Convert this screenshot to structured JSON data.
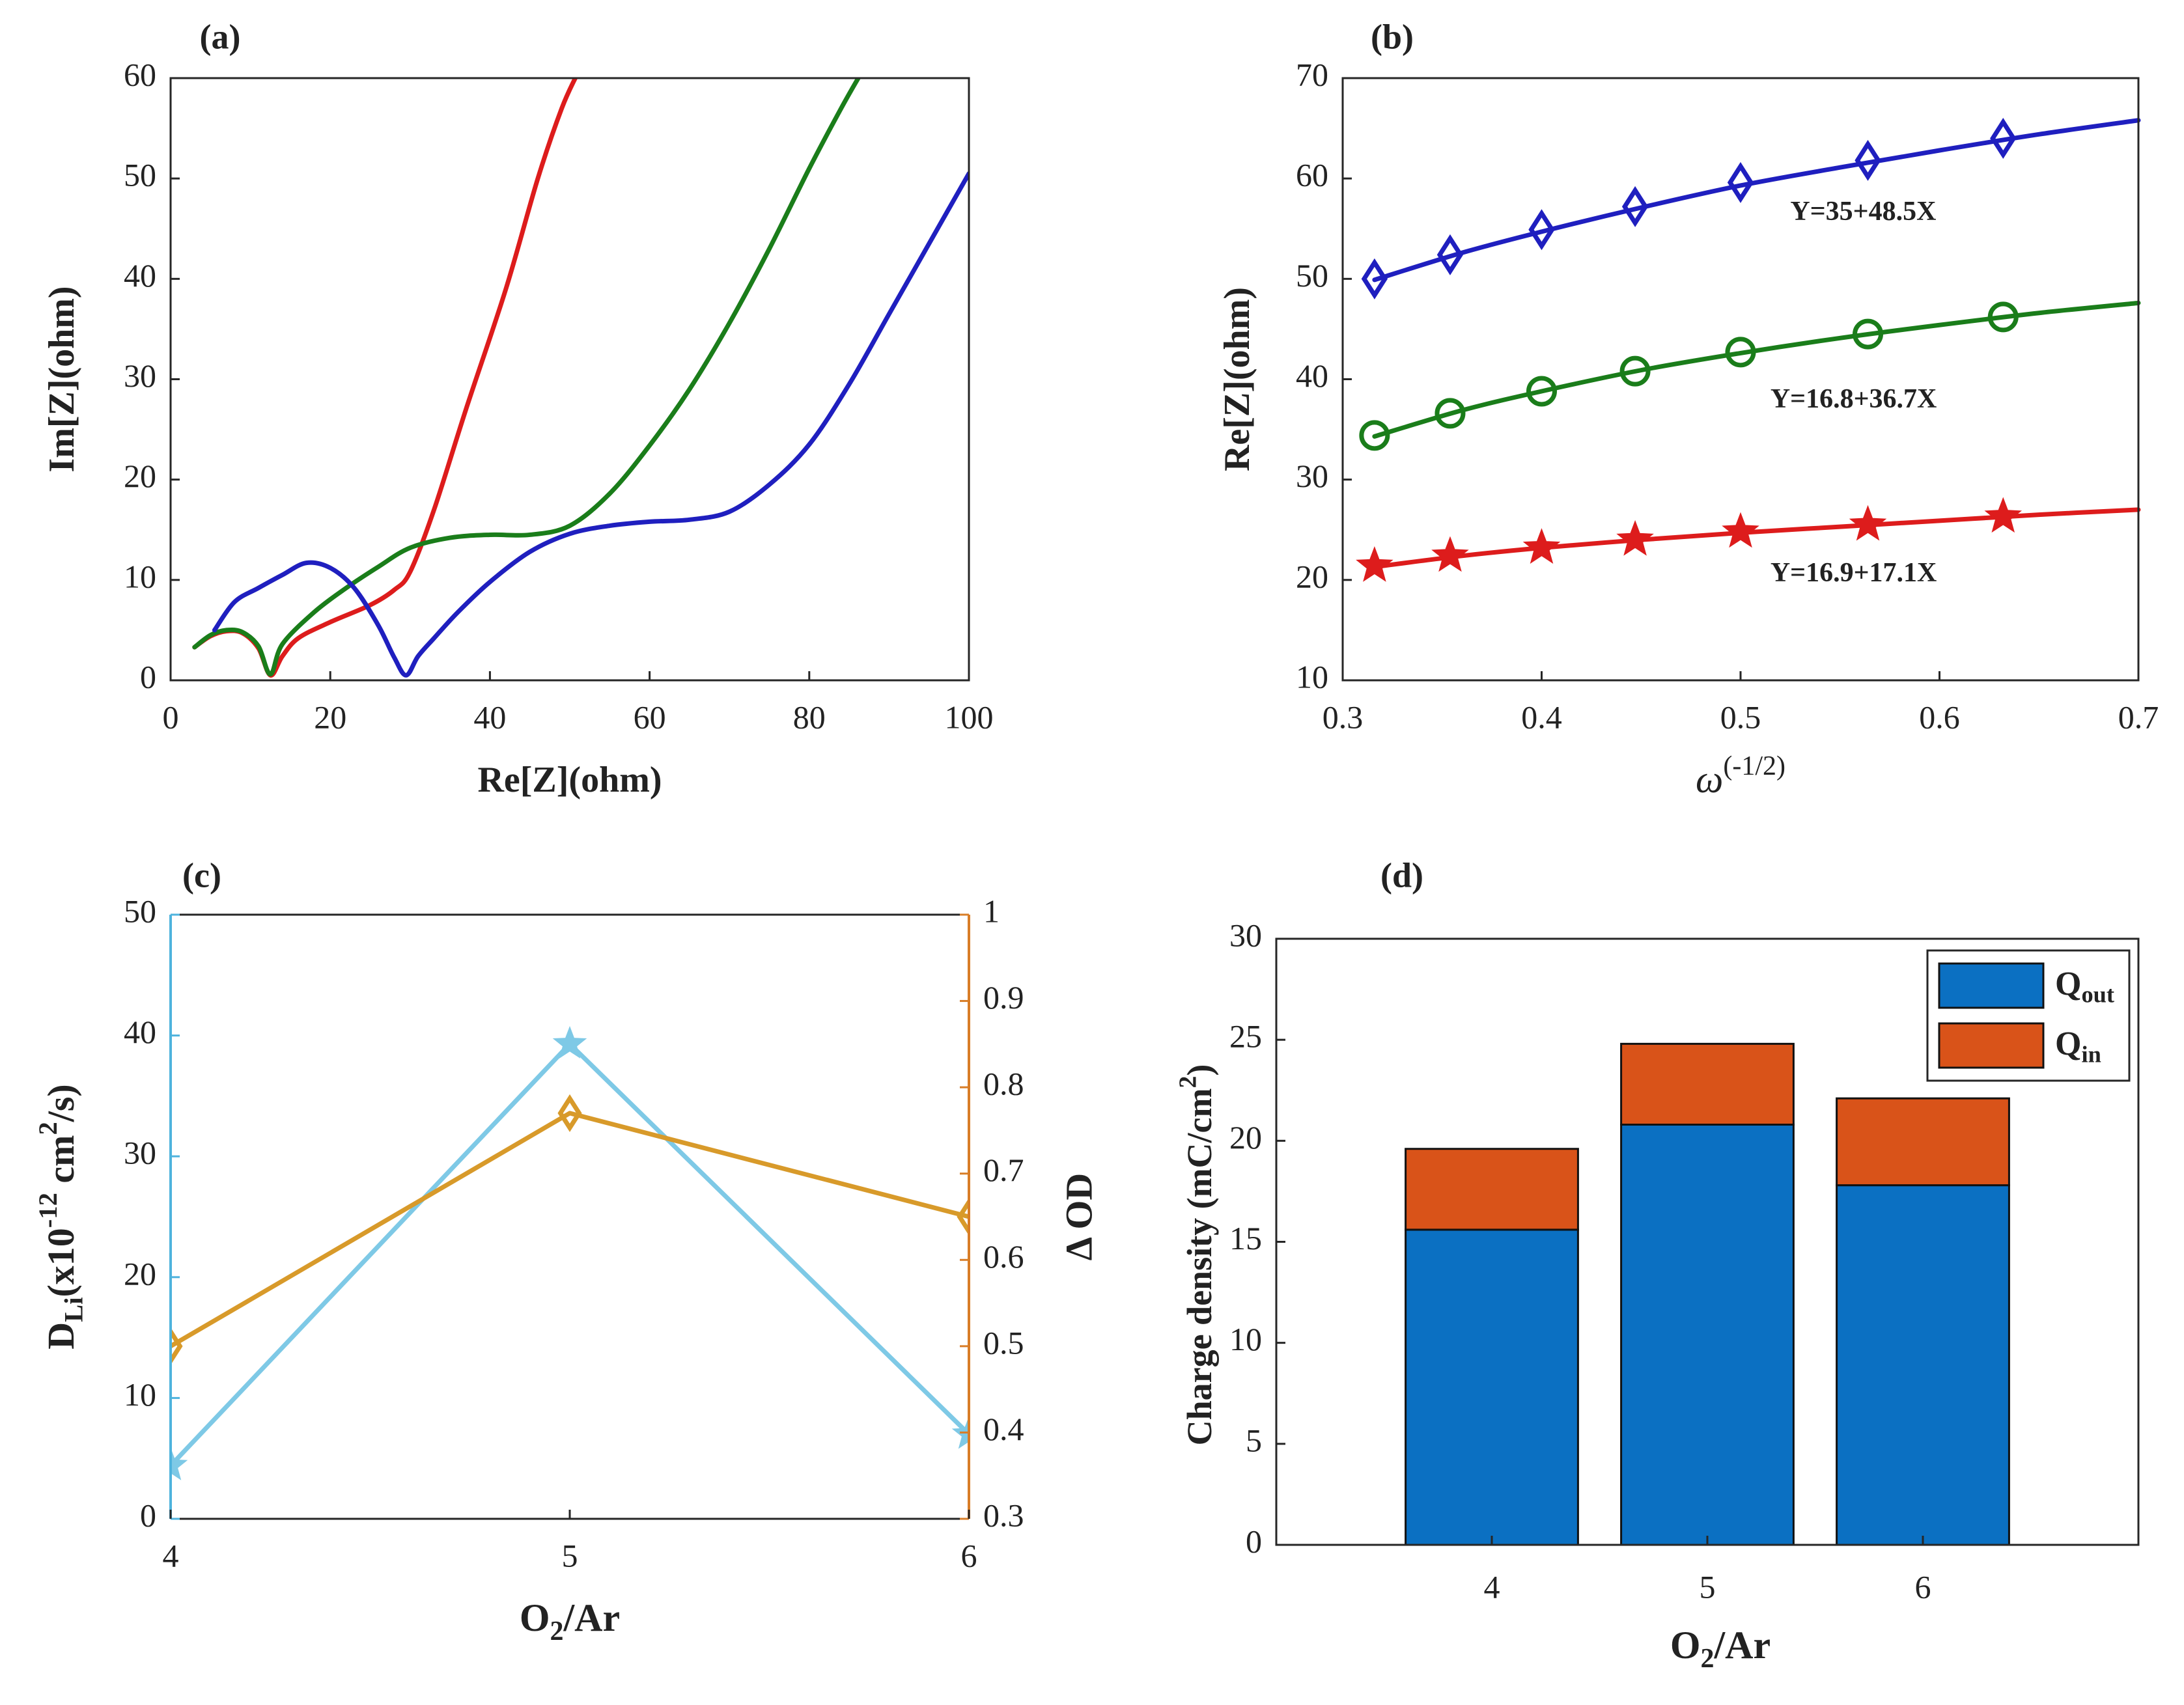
{
  "chart_data": [
    {
      "id": "a",
      "type": "line",
      "panel_label": "(a)",
      "xlabel": "Re[Z](ohm)",
      "ylabel": "Im[Z](ohm)",
      "xlim": [
        0,
        100
      ],
      "ylim": [
        0,
        60
      ],
      "xticks": [
        0,
        20,
        40,
        60,
        80,
        100
      ],
      "yticks": [
        0,
        10,
        20,
        30,
        40,
        50,
        60
      ],
      "series": [
        {
          "name": "red",
          "color": "#dd1c1c",
          "x": [
            3,
            5,
            7,
            9,
            11,
            12.5,
            14,
            16,
            20,
            25,
            28,
            30,
            33,
            37,
            42,
            46,
            49,
            51
          ],
          "y": [
            3.3,
            4.4,
            4.9,
            4.7,
            3.2,
            0.5,
            2.4,
            4.2,
            5.8,
            7.5,
            9,
            10.8,
            17,
            27,
            39,
            50,
            57,
            60.5
          ]
        },
        {
          "name": "green",
          "color": "#1a7d1a",
          "x": [
            3,
            5,
            7,
            9,
            11,
            12.5,
            14,
            18,
            22,
            26,
            30,
            35,
            40,
            45,
            50,
            55,
            60,
            65,
            70,
            75,
            80,
            84,
            86.5
          ],
          "y": [
            3.3,
            4.5,
            5,
            4.8,
            3.4,
            0.6,
            3.6,
            6.8,
            9.2,
            11.3,
            13.2,
            14.2,
            14.5,
            14.5,
            15.4,
            18.6,
            23.4,
            29,
            35.6,
            43,
            51,
            57,
            60.5
          ]
        },
        {
          "name": "blue",
          "color": "#1f1fbf",
          "x": [
            5.5,
            8,
            11,
            14,
            17,
            20,
            23,
            26,
            28,
            29.5,
            31,
            33,
            36,
            40,
            45,
            50,
            55,
            60,
            65,
            70,
            75,
            80,
            85,
            90,
            95,
            100
          ],
          "y": [
            5,
            7.8,
            9.2,
            10.5,
            11.7,
            11.2,
            9.2,
            5.5,
            2.3,
            0.5,
            2.4,
            4.2,
            6.8,
            9.8,
            12.8,
            14.6,
            15.4,
            15.8,
            16,
            16.8,
            19.5,
            23.5,
            29.5,
            36.5,
            43.5,
            50.5
          ]
        }
      ]
    },
    {
      "id": "b",
      "type": "scatter",
      "panel_label": "(b)",
      "xlabel_base": "ω",
      "xlabel_sup": "(-1/2)",
      "ylabel": "Re[Z](ohm)",
      "xlim": [
        0.3,
        0.7
      ],
      "ylim": [
        10,
        70
      ],
      "xticks": [
        0.3,
        0.4,
        0.5,
        0.6,
        0.7
      ],
      "yticks": [
        10,
        20,
        30,
        40,
        50,
        60,
        70
      ],
      "series": [
        {
          "name": "Y=35+48.5X",
          "color": "#1f1fbf",
          "marker": "diamond",
          "x": [
            0.316,
            0.354,
            0.4,
            0.447,
            0.5,
            0.564,
            0.632
          ],
          "y": [
            50,
            52.4,
            54.9,
            57.2,
            59.6,
            61.8,
            64
          ],
          "fit_x": [
            0.316,
            0.36,
            0.4,
            0.45,
            0.5,
            0.55,
            0.6,
            0.65,
            0.7
          ],
          "fit_y": [
            49.9,
            52.6,
            54.7,
            57.1,
            59.3,
            61.1,
            62.8,
            64.4,
            65.8
          ],
          "label_x": 0.525,
          "label_y": 56.5
        },
        {
          "name": "Y=16.8+36.7X",
          "color": "#1a7d1a",
          "marker": "circle",
          "x": [
            0.316,
            0.354,
            0.4,
            0.447,
            0.5,
            0.564,
            0.632
          ],
          "y": [
            34.4,
            36.6,
            38.8,
            40.8,
            42.7,
            44.5,
            46.2
          ],
          "fit_x": [
            0.316,
            0.36,
            0.4,
            0.45,
            0.5,
            0.55,
            0.6,
            0.65,
            0.7
          ],
          "fit_y": [
            34.3,
            36.9,
            38.8,
            40.9,
            42.6,
            44.1,
            45.4,
            46.6,
            47.6
          ],
          "label_x": 0.515,
          "label_y": 37.8
        },
        {
          "name": "Y=16.9+17.1X",
          "color": "#dd1c1c",
          "marker": "star",
          "x": [
            0.316,
            0.354,
            0.4,
            0.447,
            0.5,
            0.564,
            0.632
          ],
          "y": [
            21.4,
            22.4,
            23.2,
            24,
            24.8,
            25.5,
            26.3
          ],
          "fit_x": [
            0.316,
            0.36,
            0.4,
            0.45,
            0.5,
            0.55,
            0.6,
            0.65,
            0.7
          ],
          "fit_y": [
            21.3,
            22.4,
            23.2,
            24,
            24.7,
            25.3,
            25.9,
            26.5,
            27
          ],
          "label_x": 0.515,
          "label_y": 20.5
        }
      ]
    },
    {
      "id": "c",
      "type": "line",
      "panel_label": "(c)",
      "xlabel": "O2/Ar",
      "xlabel_base": "O",
      "xlabel_sub": "2",
      "xlabel_rest": "/Ar",
      "ylabel_left_base": "D",
      "ylabel_left_sub": "Li",
      "ylabel_left_mid": "(x10",
      "ylabel_left_sup": "-12",
      "ylabel_left_mid2": " cm",
      "ylabel_left_sup2": "2",
      "ylabel_left_end": "/s)",
      "ylabel_right": "Δ OD",
      "xlim": [
        4,
        6
      ],
      "ylim_left": [
        0,
        50
      ],
      "ylim_right": [
        0.3,
        1
      ],
      "xticks": [
        4,
        5,
        6
      ],
      "yticks_left": [
        0,
        10,
        20,
        30,
        40,
        50
      ],
      "yticks_right": [
        "0.3",
        "0.4",
        "0.5",
        "0.6",
        "0.7",
        "0.8",
        "0.9",
        "1"
      ],
      "left_color": "#4fb3dd",
      "right_color": "#d87d27",
      "series": [
        {
          "name": "D_Li",
          "axis": "left",
          "color": "#7ec9e6",
          "marker": "star",
          "x": [
            4,
            5,
            6
          ],
          "y": [
            4.4,
            39.3,
            7
          ]
        },
        {
          "name": "ΔOD",
          "axis": "right",
          "color": "#d89a2a",
          "marker": "diamond",
          "x": [
            4,
            5,
            6
          ],
          "y": [
            0.5,
            0.77,
            0.65
          ]
        }
      ]
    },
    {
      "id": "d",
      "type": "bar",
      "stacked": true,
      "panel_label": "(d)",
      "xlabel_base": "O",
      "xlabel_sub": "2",
      "xlabel_rest": "/Ar",
      "ylabel_base": "Charge density (mC/cm",
      "ylabel_sup": "2",
      "ylabel_end": ")",
      "categories": [
        "4",
        "5",
        "6"
      ],
      "xlim": [
        3,
        7
      ],
      "ylim": [
        0,
        30
      ],
      "yticks": [
        0,
        5,
        10,
        15,
        20,
        25,
        30
      ],
      "legend": [
        {
          "base": "Q",
          "sub": "out",
          "color": "#0b70c2"
        },
        {
          "base": "Q",
          "sub": "in",
          "color": "#d95319"
        }
      ],
      "series": [
        {
          "name": "Q_out",
          "color": "#0b70c2",
          "values": [
            15.6,
            20.8,
            17.8
          ]
        },
        {
          "name": "Q_in",
          "color": "#d95319",
          "values": [
            4.0,
            4.0,
            4.3
          ]
        }
      ]
    }
  ]
}
